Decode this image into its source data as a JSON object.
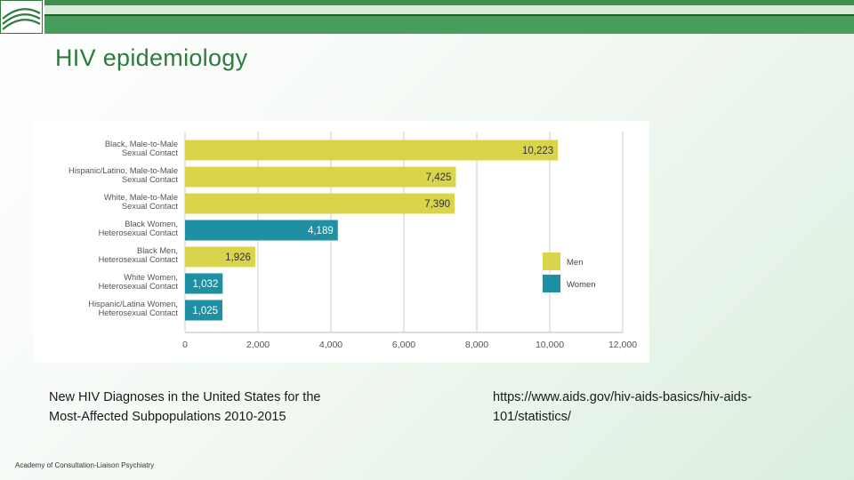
{
  "slide": {
    "title": "HIV epidemiology",
    "caption_line1": "New HIV Diagnoses in the United States for the",
    "caption_line2": "Most-Affected Subpopulations 2010-2015",
    "source_line1": "https://www.aids.gov/hiv-aids-basics/hiv-aids-",
    "source_line2": "101/statistics/",
    "footer": "Academy of Consultation-Liaison Psychiatry"
  },
  "colors": {
    "men": "#d9d44a",
    "women": "#1f8fa3",
    "grid": "#cfcfcf",
    "axis": "#bbbbbb"
  },
  "chart_data": {
    "type": "bar",
    "orientation": "horizontal",
    "categories": [
      [
        "Black, Male-to-Male",
        "Sexual Contact"
      ],
      [
        "Hispanic/Latino, Male-to-Male",
        "Sexual Contact"
      ],
      [
        "White, Male-to-Male",
        "Sexual Contact"
      ],
      [
        "Black Women,",
        "Heterosexual Contact"
      ],
      [
        "Black Men,",
        "Heterosexual Contact"
      ],
      [
        "White Women,",
        "Heterosexual Contact"
      ],
      [
        "Hispanic/Latina Women,",
        "Heterosexual Contact"
      ]
    ],
    "values": [
      10223,
      7425,
      7390,
      4189,
      1926,
      1032,
      1025
    ],
    "value_labels": [
      "10,223",
      "7,425",
      "7,390",
      "4,189",
      "1,926",
      "1,032",
      "1,025"
    ],
    "groups": [
      "Men",
      "Men",
      "Men",
      "Women",
      "Men",
      "Women",
      "Women"
    ],
    "legend": [
      {
        "name": "Men",
        "color": "#d9d44a"
      },
      {
        "name": "Women",
        "color": "#1f8fa3"
      }
    ],
    "legend_position": "right",
    "xlim": [
      0,
      12000
    ],
    "xticks": [
      0,
      2000,
      4000,
      6000,
      8000,
      10000,
      12000
    ],
    "xtick_labels": [
      "0",
      "2,000",
      "4,000",
      "6,000",
      "8,000",
      "10,000",
      "12,000"
    ],
    "grid": true,
    "title": "",
    "xlabel": "",
    "ylabel": ""
  }
}
